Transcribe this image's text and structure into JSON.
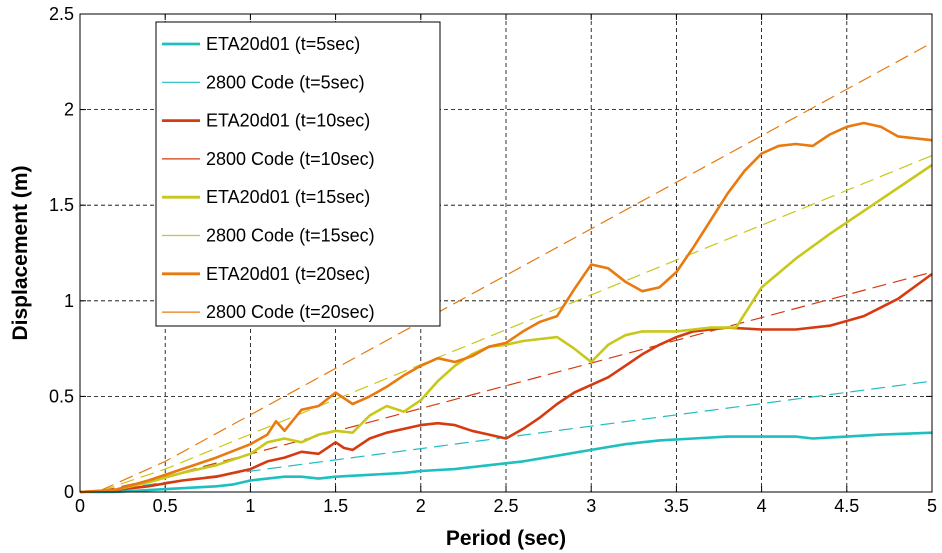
{
  "chart_data": {
    "type": "line",
    "title": "",
    "xlabel": "Period (sec)",
    "ylabel": "Displacement (m)",
    "xlim": [
      0,
      5
    ],
    "ylim": [
      0,
      2.5
    ],
    "xticks": [
      "0",
      "0.5",
      "1",
      "1.5",
      "2",
      "2.5",
      "3",
      "3.5",
      "4",
      "4.5",
      "5"
    ],
    "yticks": [
      "0",
      "0.5",
      "1",
      "1.5",
      "2",
      "2.5"
    ],
    "grid": true,
    "legend_position": "top-left",
    "series": [
      {
        "name": "ETA20d01 (t=5sec)",
        "color": "#1fbfbf",
        "style": "solid",
        "x": [
          0,
          0.2,
          0.4,
          0.6,
          0.8,
          0.9,
          1.0,
          1.1,
          1.2,
          1.3,
          1.4,
          1.5,
          1.7,
          1.9,
          2.0,
          2.2,
          2.4,
          2.6,
          2.8,
          3.0,
          3.2,
          3.4,
          3.6,
          3.8,
          4.0,
          4.2,
          4.3,
          4.5,
          4.7,
          5.0
        ],
        "y": [
          0,
          0.0,
          0.01,
          0.02,
          0.03,
          0.04,
          0.06,
          0.07,
          0.08,
          0.08,
          0.07,
          0.08,
          0.09,
          0.1,
          0.11,
          0.12,
          0.14,
          0.16,
          0.19,
          0.22,
          0.25,
          0.27,
          0.28,
          0.29,
          0.29,
          0.29,
          0.28,
          0.29,
          0.3,
          0.31
        ]
      },
      {
        "name": "2800 Code (t=5sec)",
        "color": "#1fbfbf",
        "style": "dashed",
        "x": [
          0,
          0.1,
          0.5,
          5.0
        ],
        "y": [
          0,
          0.0,
          0.05,
          0.58
        ]
      },
      {
        "name": "ETA20d01 (t=10sec)",
        "color": "#d63a10",
        "style": "solid",
        "x": [
          0,
          0.2,
          0.4,
          0.6,
          0.8,
          1.0,
          1.1,
          1.2,
          1.3,
          1.4,
          1.5,
          1.55,
          1.6,
          1.7,
          1.8,
          1.9,
          2.0,
          2.1,
          2.2,
          2.3,
          2.4,
          2.5,
          2.6,
          2.7,
          2.8,
          2.9,
          3.0,
          3.1,
          3.2,
          3.3,
          3.4,
          3.5,
          3.6,
          3.7,
          3.8,
          4.0,
          4.2,
          4.4,
          4.6,
          4.8,
          5.0
        ],
        "y": [
          0,
          0.01,
          0.03,
          0.06,
          0.08,
          0.12,
          0.16,
          0.18,
          0.21,
          0.2,
          0.26,
          0.23,
          0.22,
          0.28,
          0.31,
          0.33,
          0.35,
          0.36,
          0.35,
          0.32,
          0.3,
          0.28,
          0.33,
          0.39,
          0.46,
          0.52,
          0.56,
          0.6,
          0.66,
          0.72,
          0.77,
          0.81,
          0.84,
          0.85,
          0.86,
          0.85,
          0.85,
          0.87,
          0.92,
          1.01,
          1.14
        ]
      },
      {
        "name": "2800 Code (t=10sec)",
        "color": "#d63a10",
        "style": "dashed",
        "x": [
          0,
          0.1,
          0.5,
          5.0
        ],
        "y": [
          0,
          0.0,
          0.08,
          1.15
        ]
      },
      {
        "name": "ETA20d01 (t=15sec)",
        "color": "#c8c81a",
        "style": "solid",
        "x": [
          0,
          0.2,
          0.4,
          0.6,
          0.8,
          1.0,
          1.1,
          1.2,
          1.3,
          1.4,
          1.5,
          1.6,
          1.7,
          1.8,
          1.9,
          2.0,
          2.1,
          2.2,
          2.3,
          2.4,
          2.5,
          2.6,
          2.7,
          2.8,
          2.9,
          3.0,
          3.1,
          3.2,
          3.3,
          3.4,
          3.5,
          3.6,
          3.7,
          3.8,
          3.85,
          4.0,
          4.2,
          4.4,
          4.6,
          4.8,
          5.0
        ],
        "y": [
          0,
          0.01,
          0.05,
          0.1,
          0.14,
          0.2,
          0.26,
          0.28,
          0.26,
          0.3,
          0.32,
          0.31,
          0.4,
          0.45,
          0.42,
          0.48,
          0.58,
          0.66,
          0.72,
          0.76,
          0.77,
          0.79,
          0.8,
          0.81,
          0.75,
          0.68,
          0.77,
          0.82,
          0.84,
          0.84,
          0.84,
          0.85,
          0.86,
          0.86,
          0.86,
          1.07,
          1.22,
          1.35,
          1.47,
          1.59,
          1.71
        ]
      },
      {
        "name": "2800 Code (t=15sec)",
        "color": "#c8c81a",
        "style": "dashed",
        "x": [
          0,
          0.1,
          0.5,
          5.0
        ],
        "y": [
          0,
          0.0,
          0.12,
          1.76
        ]
      },
      {
        "name": "ETA20d01 (t=20sec)",
        "color": "#e87a10",
        "style": "solid",
        "x": [
          0,
          0.2,
          0.4,
          0.6,
          0.8,
          1.0,
          1.1,
          1.15,
          1.2,
          1.3,
          1.4,
          1.5,
          1.6,
          1.7,
          1.8,
          1.9,
          2.0,
          2.1,
          2.2,
          2.3,
          2.4,
          2.5,
          2.6,
          2.7,
          2.8,
          2.9,
          3.0,
          3.1,
          3.2,
          3.3,
          3.4,
          3.5,
          3.6,
          3.7,
          3.8,
          3.9,
          4.0,
          4.1,
          4.2,
          4.3,
          4.4,
          4.5,
          4.6,
          4.7,
          4.8,
          5.0
        ],
        "y": [
          0,
          0.01,
          0.06,
          0.12,
          0.18,
          0.25,
          0.3,
          0.37,
          0.32,
          0.43,
          0.45,
          0.52,
          0.46,
          0.5,
          0.55,
          0.61,
          0.66,
          0.7,
          0.68,
          0.71,
          0.76,
          0.78,
          0.84,
          0.89,
          0.92,
          1.06,
          1.19,
          1.17,
          1.1,
          1.05,
          1.07,
          1.15,
          1.28,
          1.42,
          1.56,
          1.68,
          1.77,
          1.81,
          1.82,
          1.81,
          1.87,
          1.91,
          1.93,
          1.91,
          1.86,
          1.84
        ]
      },
      {
        "name": "2800 Code (t=20sec)",
        "color": "#e87a10",
        "style": "dashed",
        "x": [
          0,
          0.1,
          0.5,
          5.0
        ],
        "y": [
          0,
          0.0,
          0.16,
          2.35
        ]
      }
    ]
  }
}
